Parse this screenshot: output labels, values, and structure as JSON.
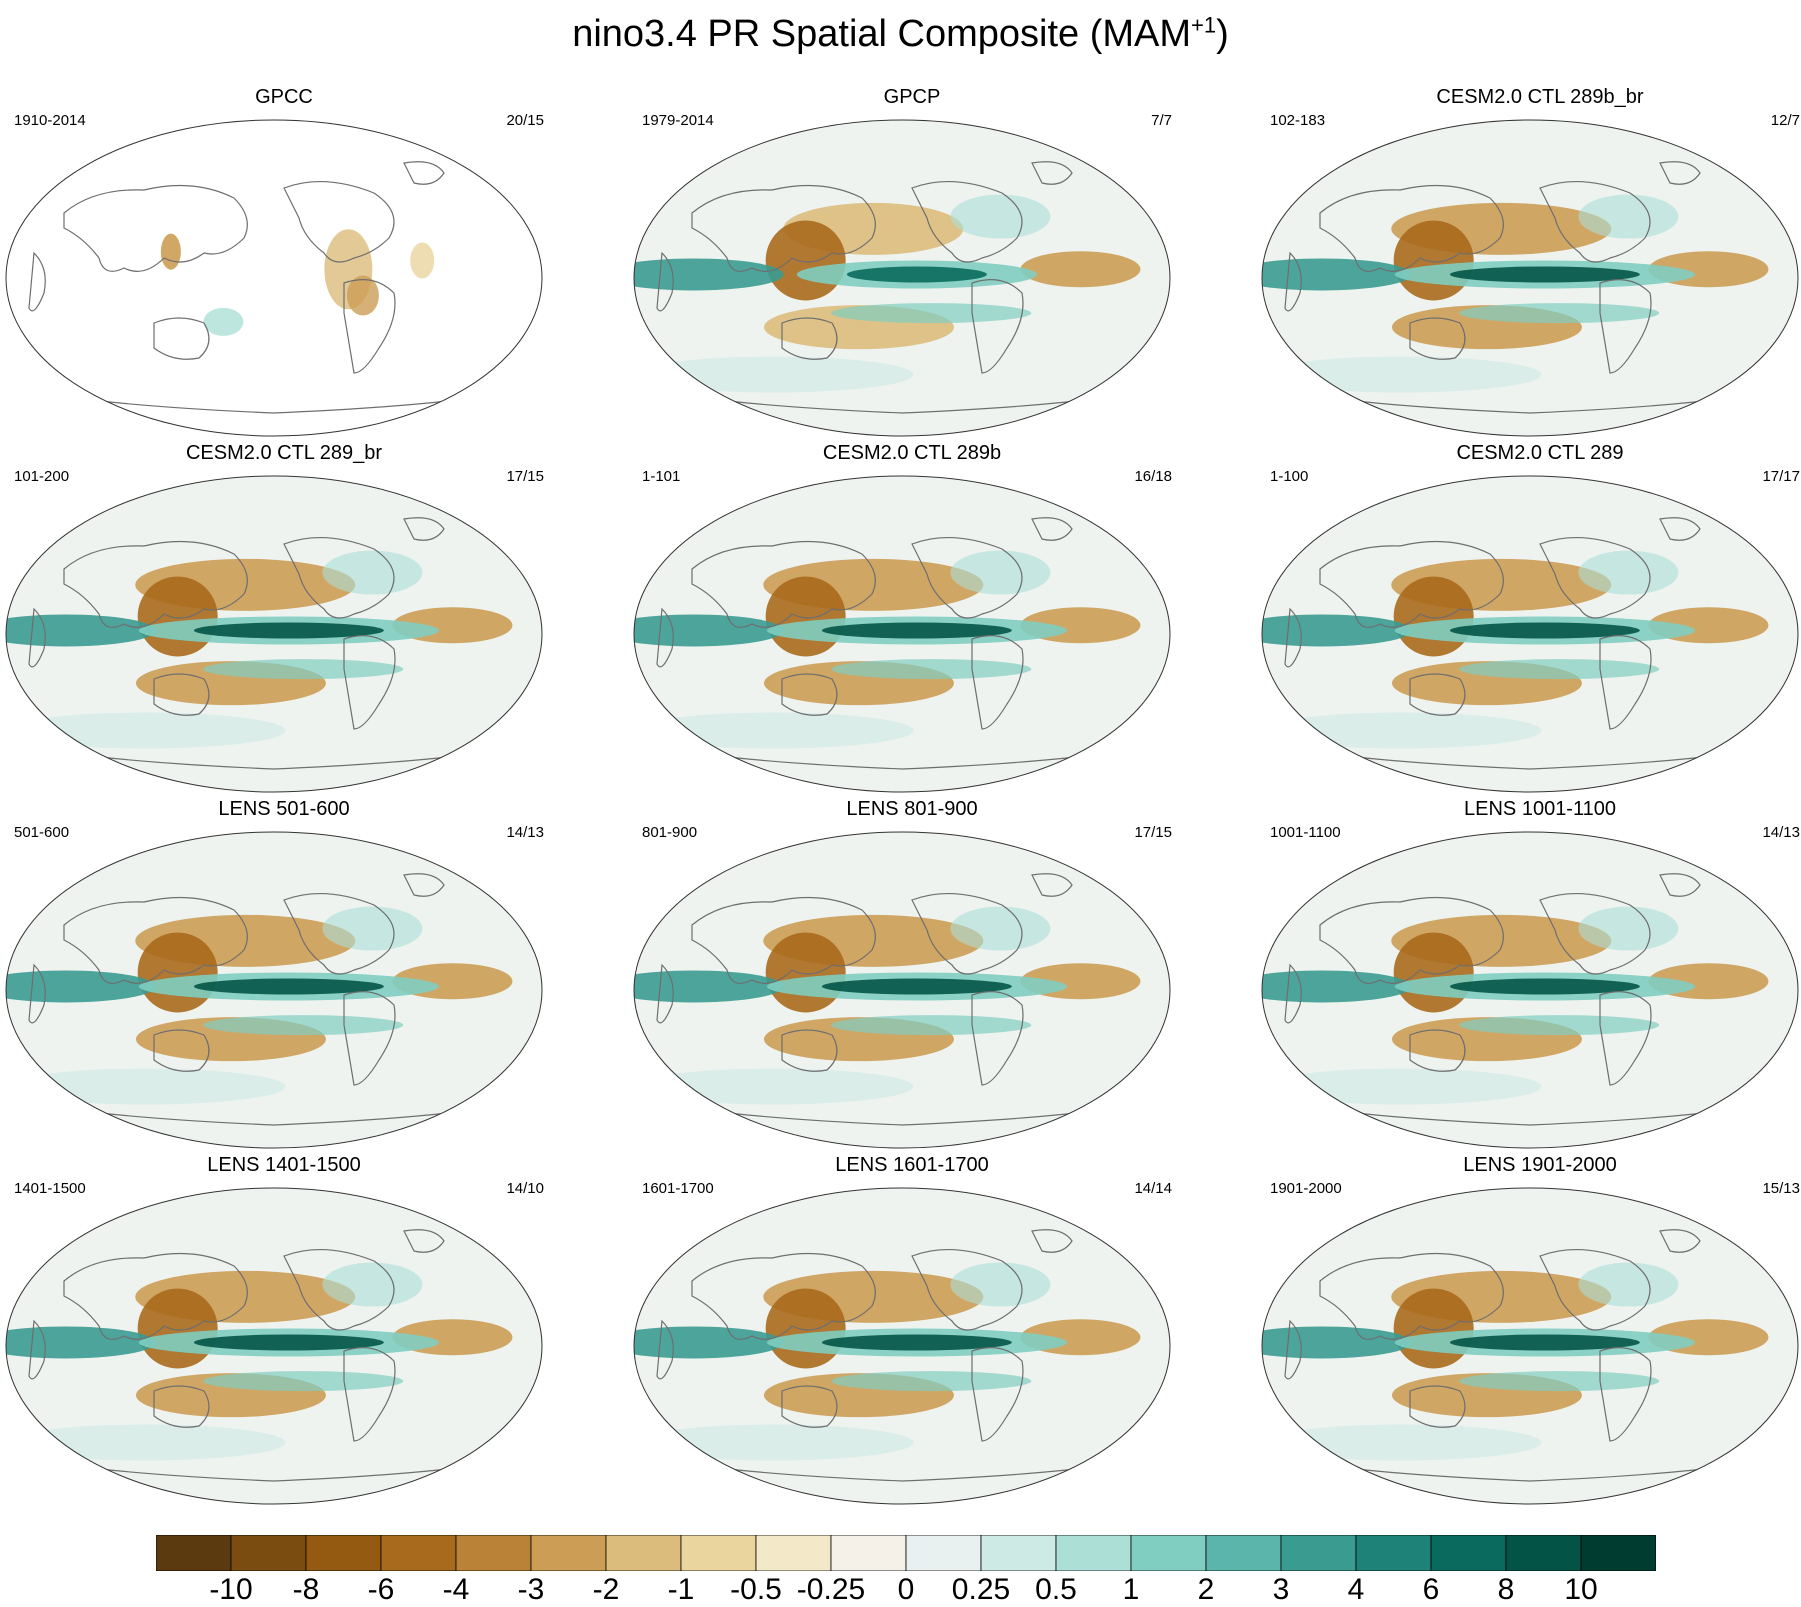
{
  "title": {
    "main": "nino3.4 PR Spatial Composite (MAM",
    "sup": "+1",
    "close": ")"
  },
  "chart_data": {
    "type": "heatmap",
    "panels": [
      {
        "title": "GPCC",
        "period": "1910-2014",
        "count": "20/15",
        "pattern": "gpcc"
      },
      {
        "title": "GPCP",
        "period": "1979-2014",
        "count": "7/7",
        "pattern": "obs"
      },
      {
        "title": "CESM2.0 CTL 289b_br",
        "period": "102-183",
        "count": "12/7",
        "pattern": "model"
      },
      {
        "title": "CESM2.0 CTL 289_br",
        "period": "101-200",
        "count": "17/15",
        "pattern": "model"
      },
      {
        "title": "CESM2.0 CTL 289b",
        "period": "1-101",
        "count": "16/18",
        "pattern": "model"
      },
      {
        "title": "CESM2.0 CTL 289",
        "period": "1-100",
        "count": "17/17",
        "pattern": "model"
      },
      {
        "title": "LENS 501-600",
        "period": "501-600",
        "count": "14/13",
        "pattern": "model"
      },
      {
        "title": "LENS 801-900",
        "period": "801-900",
        "count": "17/15",
        "pattern": "model"
      },
      {
        "title": "LENS 1001-1100",
        "period": "1001-1100",
        "count": "14/13",
        "pattern": "model"
      },
      {
        "title": "LENS 1401-1500",
        "period": "1401-1500",
        "count": "14/10",
        "pattern": "model"
      },
      {
        "title": "LENS 1601-1700",
        "period": "1601-1700",
        "count": "14/14",
        "pattern": "model"
      },
      {
        "title": "LENS 1901-2000",
        "period": "1901-2000",
        "count": "15/13",
        "pattern": "model"
      }
    ],
    "colorbar": {
      "labels": [
        "-10",
        "-8",
        "-6",
        "-4",
        "-3",
        "-2",
        "-1",
        "-0.5",
        "-0.25",
        "0",
        "0.25",
        "0.5",
        "1",
        "2",
        "3",
        "4",
        "6",
        "8",
        "10"
      ],
      "colors": [
        "#5c3a0f",
        "#7a4c10",
        "#945a12",
        "#a86a1c",
        "#ba8236",
        "#cc9d55",
        "#dcbc7c",
        "#ead59f",
        "#f3e8c7",
        "#f5f1e9",
        "#e8f1f0",
        "#cdeae5",
        "#ace0d7",
        "#80cdc1",
        "#5cb5aa",
        "#3a9b91",
        "#1f8278",
        "#0a6a5d",
        "#035447",
        "#003c30"
      ]
    }
  },
  "colors": {
    "land_outline": "#6e6e6e",
    "map_border": "#333333"
  }
}
